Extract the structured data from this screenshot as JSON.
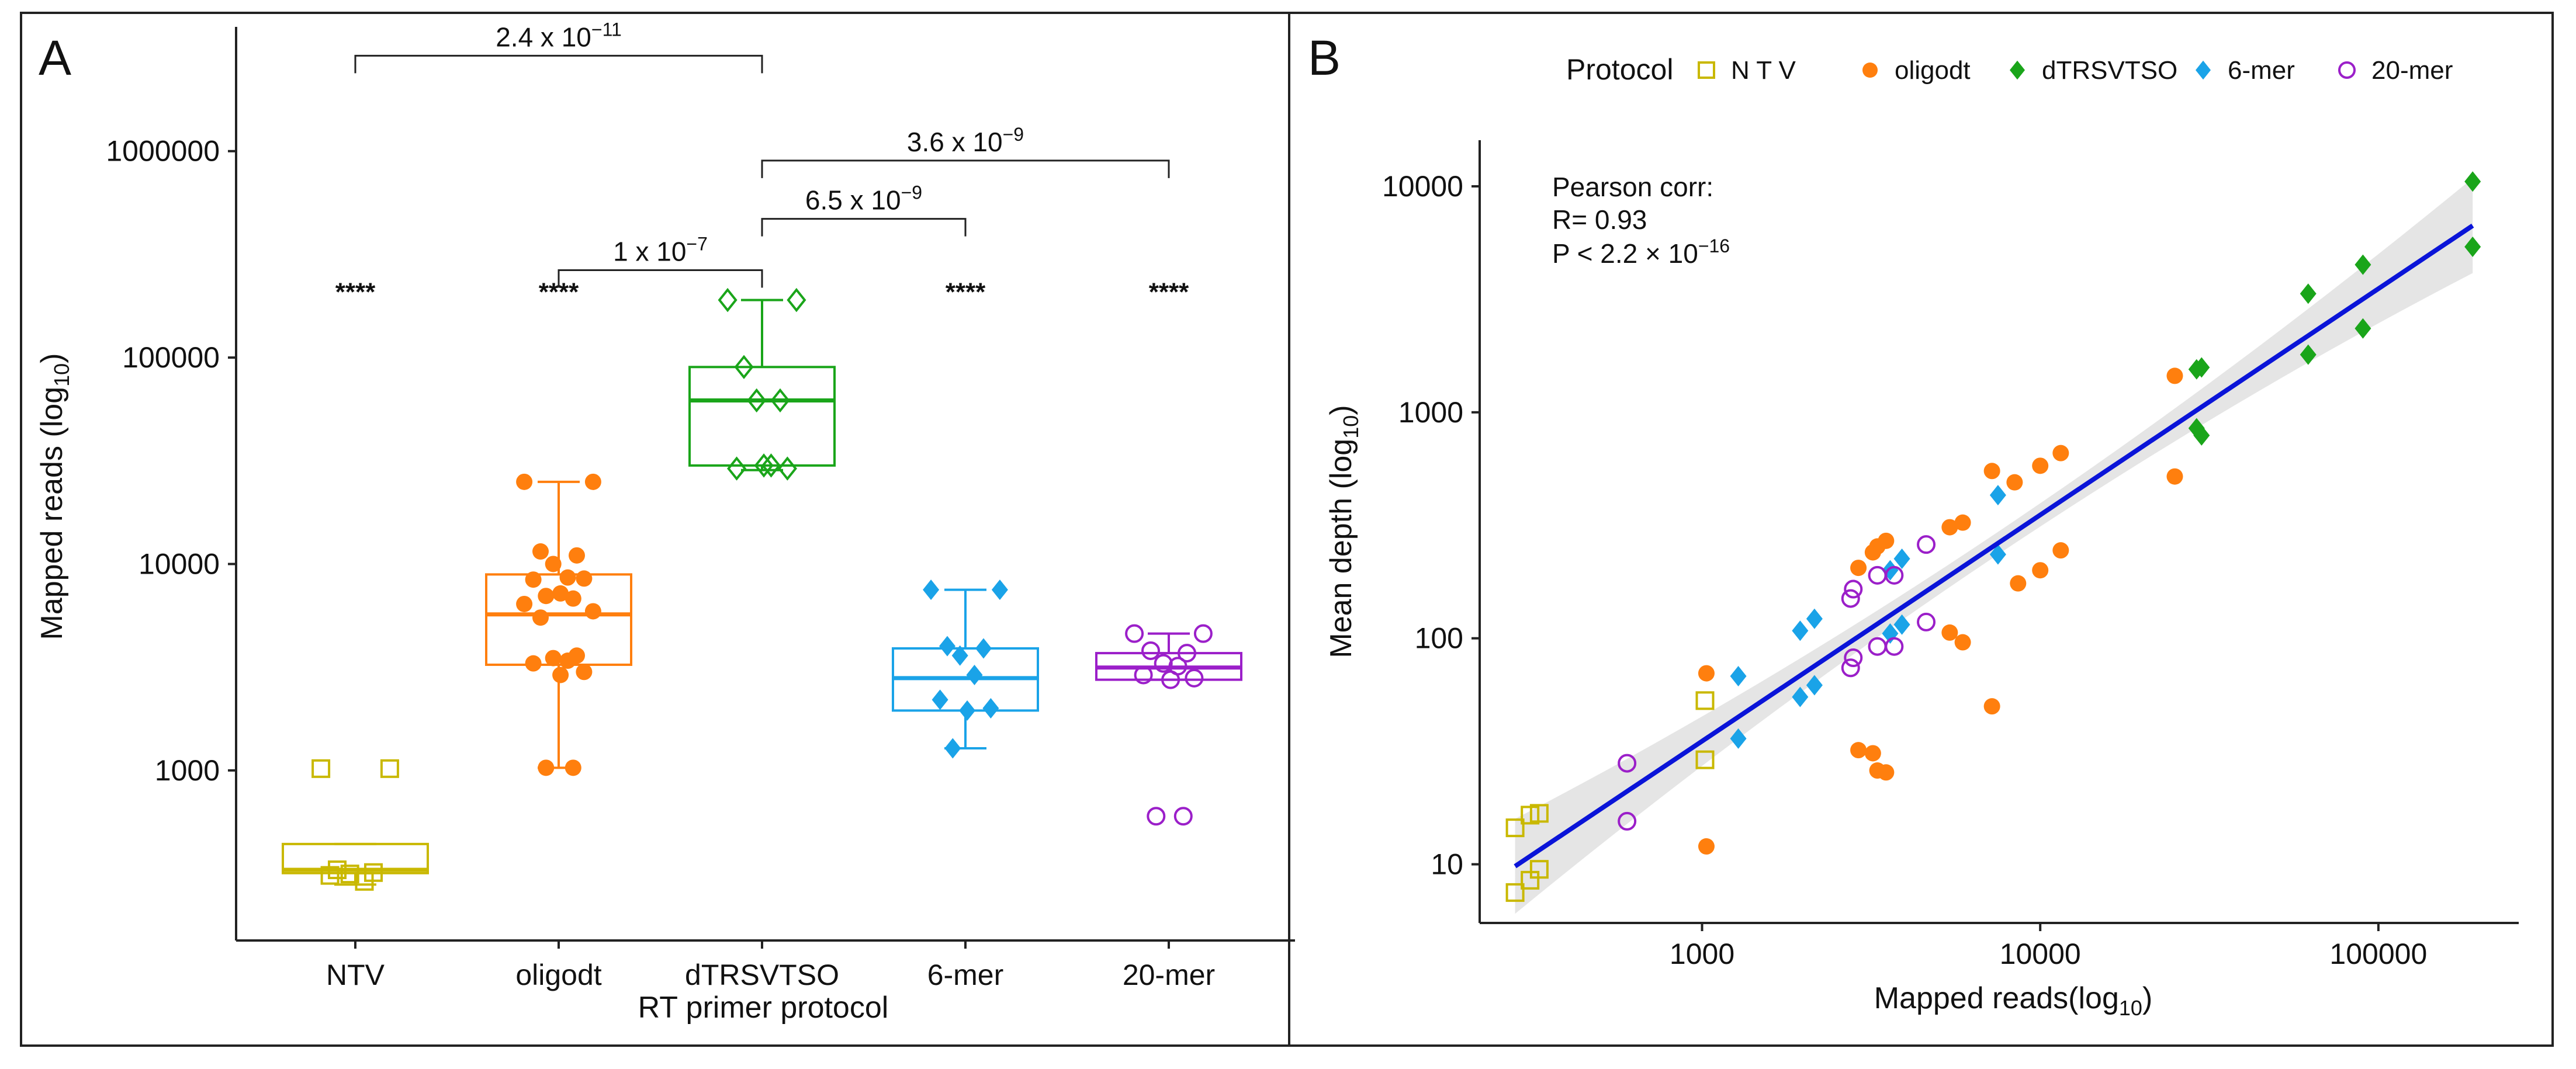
{
  "chart_data": [
    {
      "panel": "A",
      "type": "box",
      "xlabel": "RT primer protocol",
      "ylabel": "Mapped reads (log",
      "ylabel_sub": "10",
      "ylabel_close": ")",
      "yscale": "log10",
      "ylim": [
        150,
        4000000
      ],
      "yticks": [
        {
          "value": 1000,
          "label": "1000"
        },
        {
          "value": 10000,
          "label": "10000"
        },
        {
          "value": 100000,
          "label": "100000"
        },
        {
          "value": 1000000,
          "label": "1000000"
        }
      ],
      "categories": [
        "NTV",
        "oligodt",
        "dTRSVTSO",
        "6-mer",
        "20-mer"
      ],
      "colors": [
        "#c9b800",
        "#ff7f0e",
        "#1aa51a",
        "#1aa3e8",
        "#9b1fc9"
      ],
      "markers": [
        "square-open",
        "circle",
        "diamond-open",
        "diamond",
        "circle-open"
      ],
      "boxes": [
        {
          "q1": 318,
          "median": 330,
          "q3": 440,
          "whisker_low": 280,
          "whisker_high": 440
        },
        {
          "q1": 3250,
          "median": 5700,
          "q3": 8900,
          "whisker_low": 1030,
          "whisker_high": 25000
        },
        {
          "q1": 30000,
          "median": 62000,
          "q3": 90000,
          "whisker_low": 28500,
          "whisker_high": 190000
        },
        {
          "q1": 1950,
          "median": 2800,
          "q3": 3900,
          "whisker_low": 1280,
          "whisker_high": 7500
        },
        {
          "q1": 2750,
          "median": 3150,
          "q3": 3700,
          "whisker_low": 2750,
          "whisker_high": 4600
        }
      ],
      "points": [
        [
          1020,
          1020,
          330,
          320,
          315,
          290,
          310
        ],
        [
          25000,
          25000,
          11500,
          11000,
          10000,
          8600,
          8400,
          8500,
          7200,
          7000,
          6800,
          6400,
          5900,
          5500,
          3600,
          3500,
          3400,
          3300,
          3000,
          2900,
          1030,
          1030
        ],
        [
          190000,
          190000,
          90000,
          62000,
          62000,
          30000,
          29000,
          29000,
          30000
        ],
        [
          7500,
          7500,
          4000,
          3900,
          3600,
          2900,
          2200,
          2000,
          1950,
          1280
        ],
        [
          4600,
          4600,
          3800,
          3700,
          3300,
          3200,
          2900,
          2800,
          2750,
          600,
          600
        ]
      ],
      "stars": [
        "****",
        "****",
        "",
        "****",
        "****"
      ],
      "star_level": 210000,
      "comparisons": [
        {
          "from": 0,
          "to": 2,
          "level": 2900000,
          "label": "2.4  x  10",
          "exp": "−11"
        },
        {
          "from": 2,
          "to": 4,
          "level": 900000,
          "label": "3.6 x 10",
          "exp": "−9"
        },
        {
          "from": 2,
          "to": 3,
          "level": 470000,
          "label": "6.5 x 10",
          "exp": "−9"
        },
        {
          "from": 1,
          "to": 2,
          "level": 265000,
          "label": "1 x 10",
          "exp": "−7"
        }
      ]
    },
    {
      "panel": "B",
      "type": "scatter",
      "xlabel": "Mapped  reads(log",
      "xlabel_sub": "10",
      "xlabel_close": ")",
      "ylabel": "Mean depth (log",
      "ylabel_sub": "10",
      "ylabel_close": ")",
      "xscale": "log10",
      "yscale": "log10",
      "xlim": [
        220,
        260000
      ],
      "ylim": [
        5.5,
        16000
      ],
      "xticks": [
        {
          "value": 1000,
          "label": "1000"
        },
        {
          "value": 10000,
          "label": "10000"
        },
        {
          "value": 100000,
          "label": "100000"
        }
      ],
      "yticks": [
        {
          "value": 10,
          "label": "10"
        },
        {
          "value": 100,
          "label": "100"
        },
        {
          "value": 1000,
          "label": "1000"
        },
        {
          "value": 10000,
          "label": "10000"
        }
      ],
      "legend_title": "Protocol",
      "series": [
        {
          "name": "N T V",
          "color": "#c9b800",
          "marker": "square-open",
          "points": [
            [
              280,
              7.5
            ],
            [
              280,
              14.5
            ],
            [
              310,
              16.5
            ],
            [
              330,
              16.8
            ],
            [
              310,
              8.5
            ],
            [
              330,
              9.5
            ],
            [
              1020,
              53
            ],
            [
              1020,
              29
            ]
          ]
        },
        {
          "name": "oligodt",
          "color": "#ff7f0e",
          "marker": "circle",
          "points": [
            [
              1030,
              70
            ],
            [
              1030,
              12
            ],
            [
              2900,
              205
            ],
            [
              3200,
              240
            ],
            [
              3300,
              255
            ],
            [
              3500,
              270
            ],
            [
              2900,
              32
            ],
            [
              3200,
              31
            ],
            [
              3300,
              26
            ],
            [
              3500,
              25.5
            ],
            [
              5400,
              310
            ],
            [
              5900,
              325
            ],
            [
              5400,
              106
            ],
            [
              5900,
              96
            ],
            [
              7200,
              550
            ],
            [
              7200,
              50
            ],
            [
              8400,
              490
            ],
            [
              8600,
              175
            ],
            [
              10000,
              580
            ],
            [
              10000,
              200
            ],
            [
              11500,
              660
            ],
            [
              11500,
              245
            ],
            [
              25000,
              1450
            ],
            [
              25000,
              520
            ]
          ]
        },
        {
          "name": "dTRSVTSO",
          "color": "#1aa51a",
          "marker": "diamond",
          "points": [
            [
              190000,
              10500
            ],
            [
              190000,
              5400
            ],
            [
              90000,
              4500
            ],
            [
              90000,
              2350
            ],
            [
              62000,
              3350
            ],
            [
              62000,
              1800
            ],
            [
              29000,
              1550
            ],
            [
              30000,
              1580
            ],
            [
              29000,
              850
            ],
            [
              30000,
              790
            ]
          ]
        },
        {
          "name": "6-mer",
          "color": "#1aa3e8",
          "marker": "diamond",
          "points": [
            [
              1280,
              68
            ],
            [
              1280,
              36
            ],
            [
              1950,
              108
            ],
            [
              2150,
              122
            ],
            [
              1950,
              55
            ],
            [
              2150,
              62
            ],
            [
              3600,
              200
            ],
            [
              3900,
              225
            ],
            [
              3600,
              105
            ],
            [
              3900,
              115
            ],
            [
              7500,
              430
            ],
            [
              7500,
              235
            ]
          ]
        },
        {
          "name": "20-mer",
          "color": "#9b1fc9",
          "marker": "circle-open",
          "points": [
            [
              600,
              28
            ],
            [
              600,
              15.5
            ],
            [
              2750,
              150
            ],
            [
              2800,
              165
            ],
            [
              2750,
              74
            ],
            [
              2800,
              82
            ],
            [
              3300,
              190
            ],
            [
              3700,
              190
            ],
            [
              3300,
              92
            ],
            [
              3700,
              92
            ],
            [
              4600,
              260
            ],
            [
              4600,
              118
            ]
          ]
        }
      ],
      "fit_line": {
        "x": [
          280,
          190000
        ],
        "y": [
          9.8,
          6700
        ],
        "color": "#0a14d8"
      },
      "stats": {
        "line1": "Pearson corr:",
        "line2": "R= 0.93",
        "line3": "P < 2.2 × 10",
        "exp": "−16"
      }
    }
  ]
}
